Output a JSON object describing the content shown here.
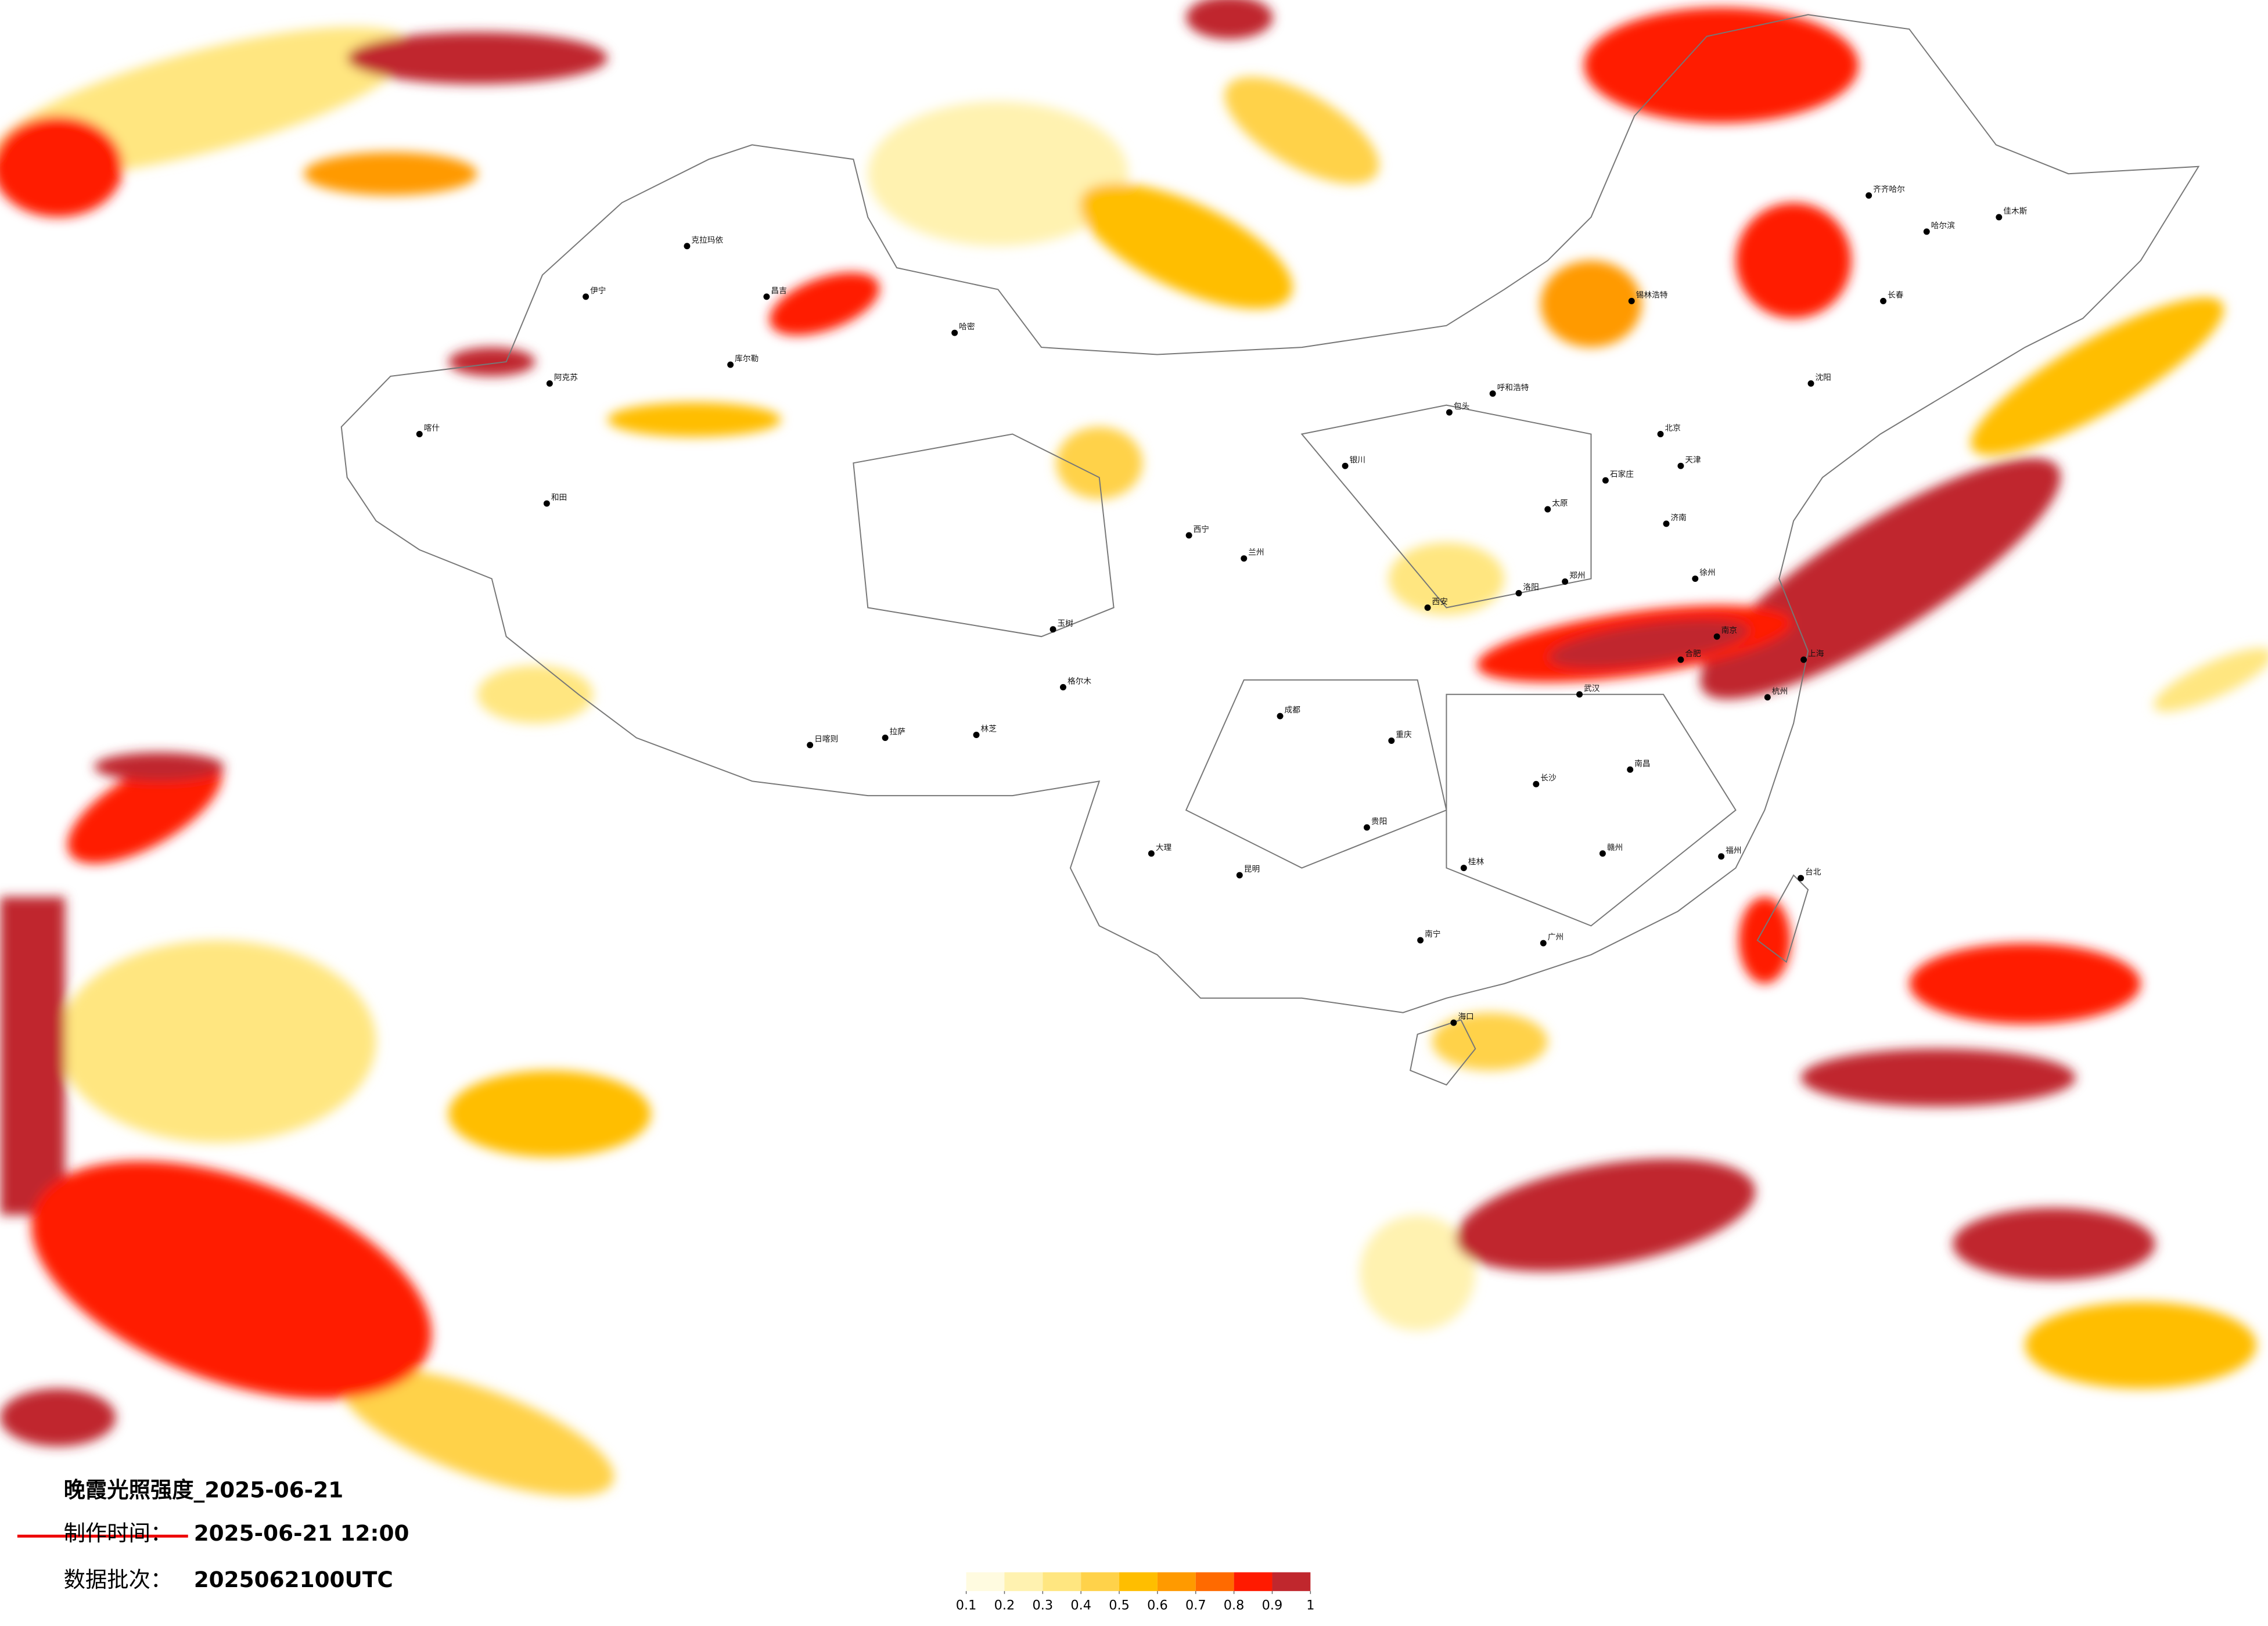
{
  "header": {
    "title": "晚霞光照强度_2025-06-21",
    "production_label": "制作时间：",
    "production_time": "2025-06-21 12:00",
    "batch_label": "数据批次：",
    "batch": "2025062100UTC"
  },
  "colorbar": {
    "ticks": [
      0.1,
      0.2,
      0.3,
      0.4,
      0.5,
      0.6,
      0.7,
      0.8,
      0.9,
      1
    ],
    "colors": [
      "#fffbe0",
      "#fff2b0",
      "#ffe680",
      "#ffd24a",
      "#ffbe00",
      "#ff9a00",
      "#ff6a00",
      "#ff1a00",
      "#c0272d"
    ]
  },
  "cities": [
    "克拉玛依",
    "伊宁",
    "阿克苏",
    "喀什",
    "和田",
    "昌吉",
    "哈密",
    "库尔勒",
    "日喀则",
    "林芝",
    "玉树",
    "格尔木",
    "拉萨",
    "北京",
    "天津",
    "石家庄",
    "太原",
    "呼和浩特",
    "沈阳",
    "长春",
    "哈尔滨",
    "济南",
    "郑州",
    "西安",
    "兰州",
    "西宁",
    "银川",
    "成都",
    "重庆",
    "贵阳",
    "昆明",
    "南宁",
    "广州",
    "福州",
    "南昌",
    "长沙",
    "武汉",
    "合肥",
    "南京",
    "杭州",
    "上海",
    "台北",
    "海口",
    "齐齐哈尔",
    "佳木斯",
    "锡林浩特",
    "包头",
    "洛阳",
    "徐州",
    "赣州",
    "桂林",
    "大理"
  ]
}
